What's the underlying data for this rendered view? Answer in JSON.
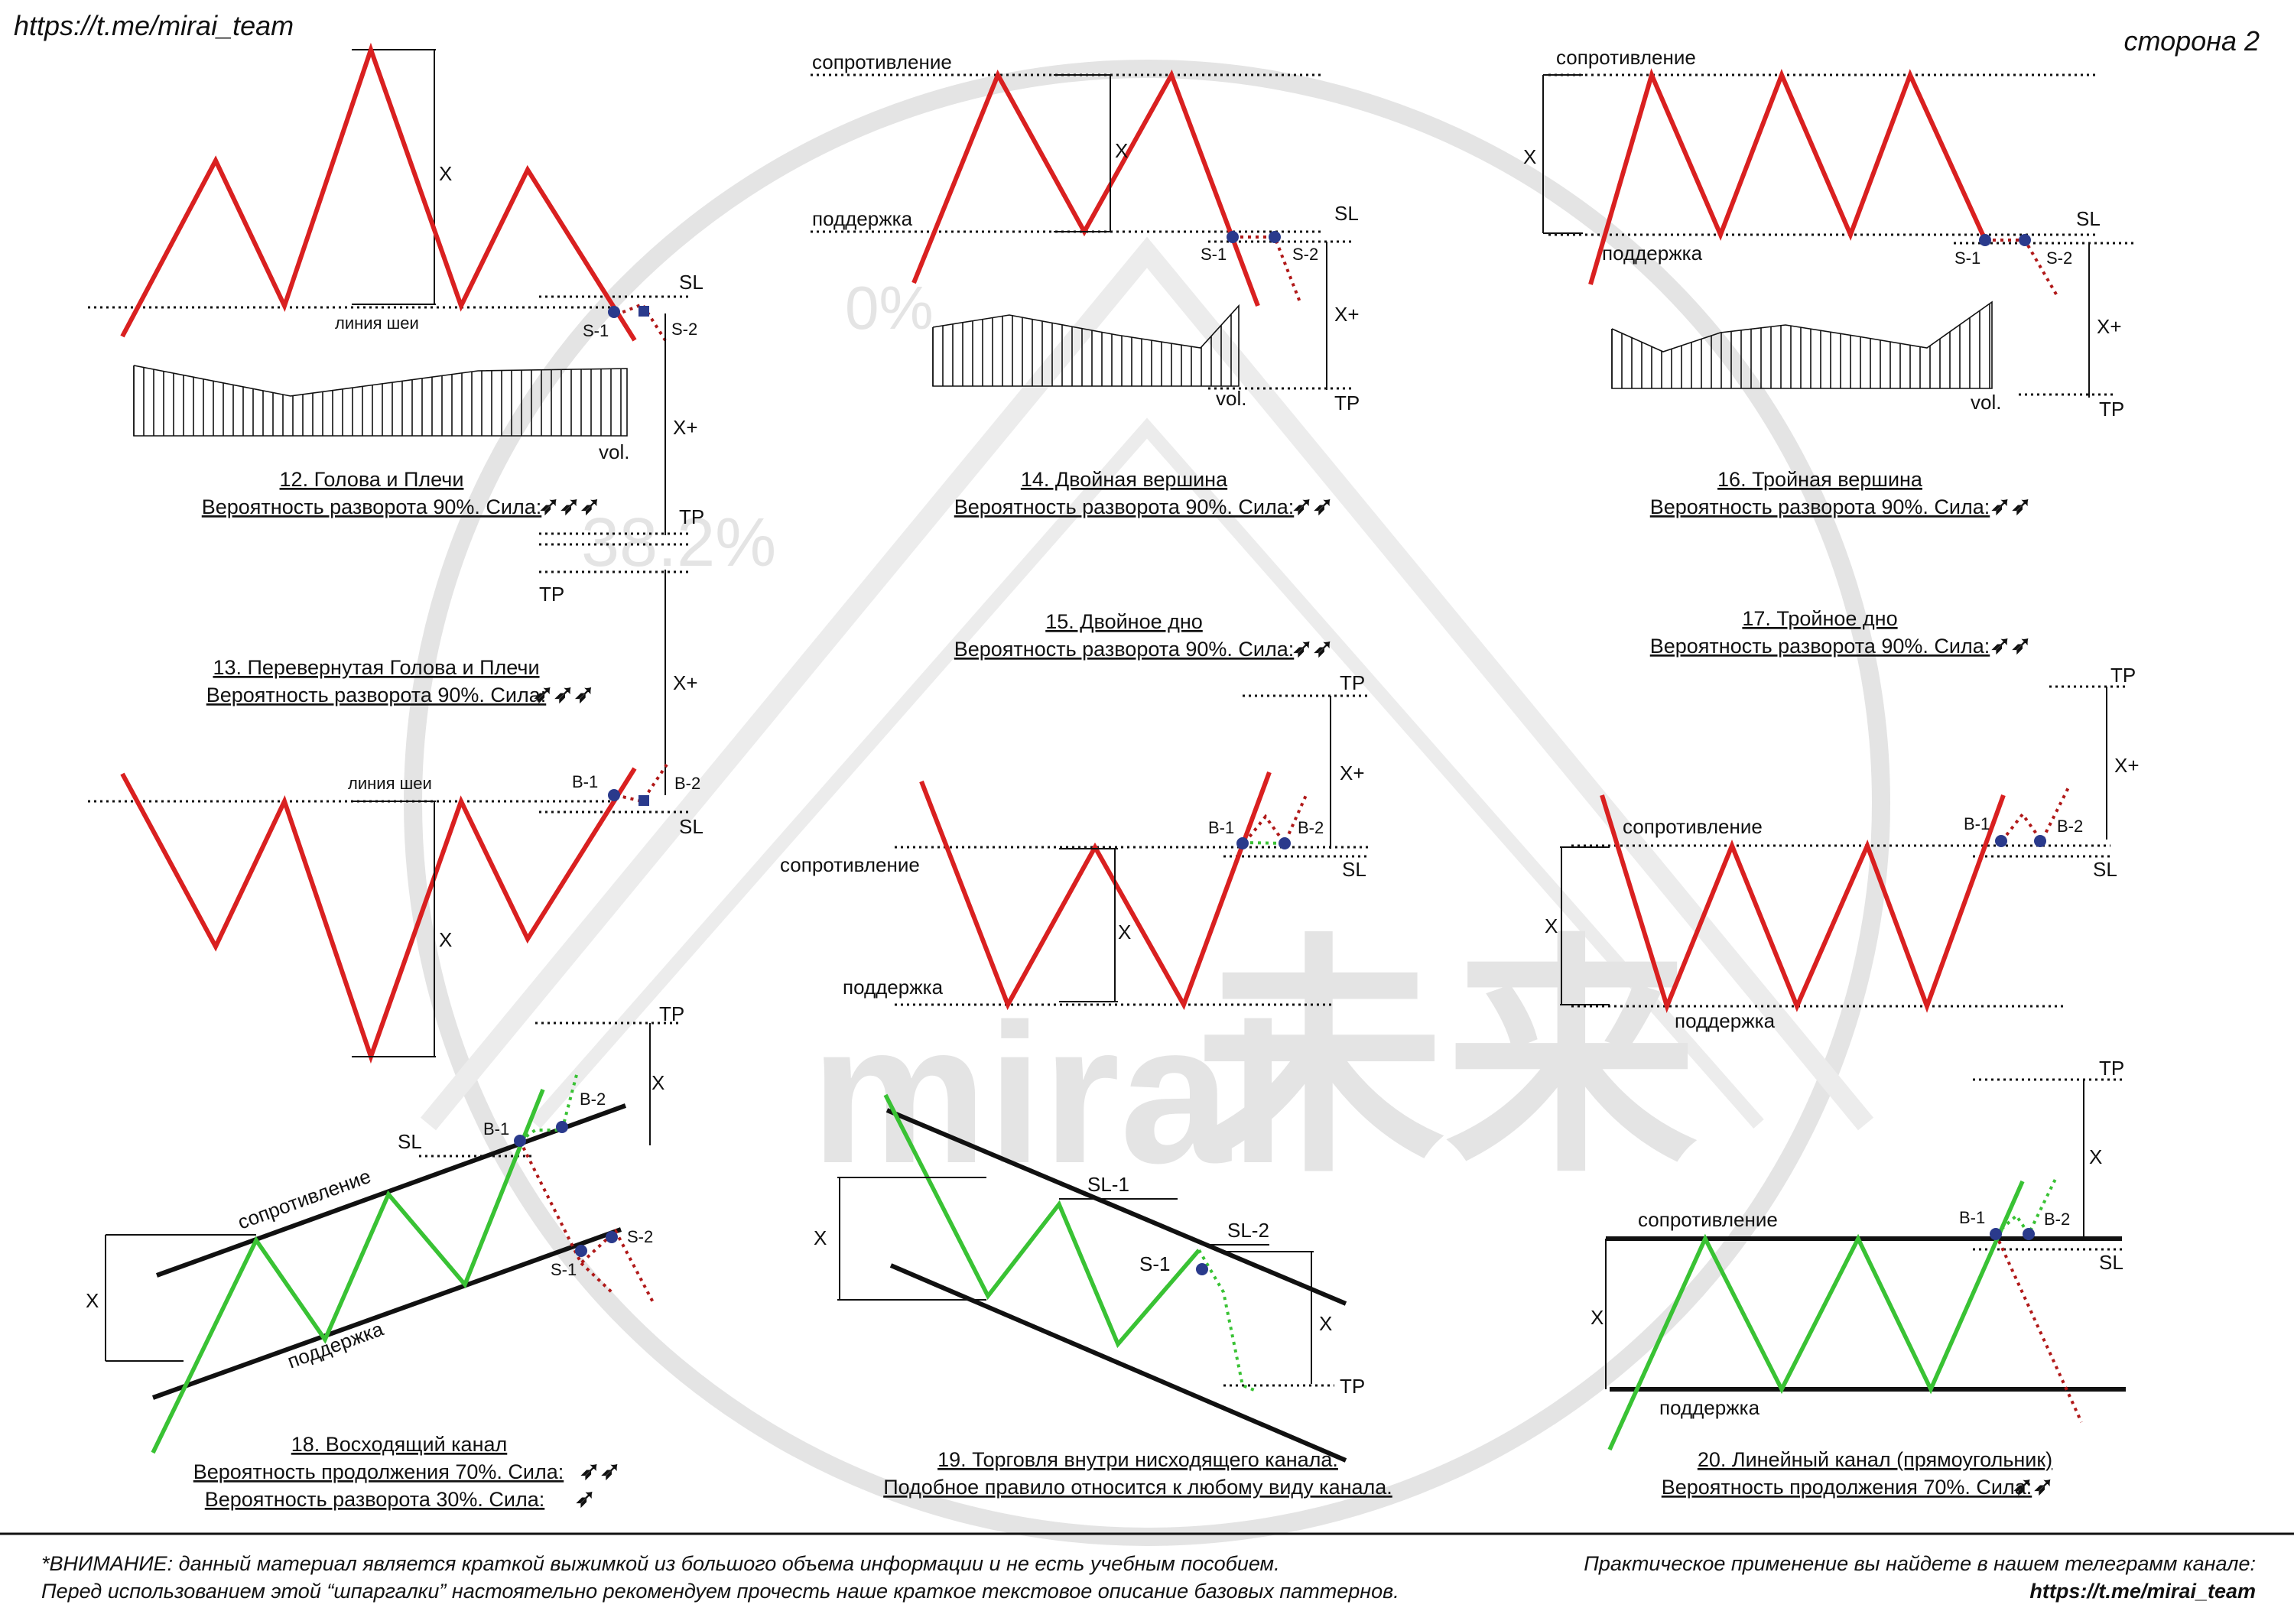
{
  "header": {
    "link": "https://t.me/mirai_team",
    "page": "сторона 2"
  },
  "watermark": {
    "brand": "mirai",
    "kanji": "未来",
    "fib_0": "0%",
    "fib_382": "38.2%"
  },
  "common": {
    "x": "X",
    "x_plus": "X+",
    "sl": "SL",
    "tp": "TP",
    "vol": "vol.",
    "s1": "S-1",
    "s2": "S-2",
    "b1": "B-1",
    "b2": "B-2",
    "neckline": "линия шеи",
    "resistance": "сопротивление",
    "support": "поддержка"
  },
  "patterns": {
    "p12": {
      "title": "12. Голова и Плечи",
      "prob": "Вероятность разворота 90%. Сила:"
    },
    "p13": {
      "title": "13. Перевернутая Голова и Плечи",
      "prob": "Вероятность разворота 90%. Сила:"
    },
    "p14": {
      "title": "14. Двойная вершина",
      "prob": "Вероятность разворота 90%. Сила:"
    },
    "p15": {
      "title": "15. Двойное дно",
      "prob": "Вероятность разворота 90%. Сила:"
    },
    "p16": {
      "title": "16. Тройная вершина",
      "prob": "Вероятность разворота 90%. Сила:"
    },
    "p17": {
      "title": "17. Тройное дно",
      "prob": "Вероятность разворота 90%. Сила:"
    },
    "p18": {
      "title": "18. Восходящий канал",
      "prob": "Вероятность продолжения 70%. Сила:",
      "prob2": "Вероятность разворота 30%. Сила:"
    },
    "p19": {
      "title": "19. Торговля внутри нисходящего канала.",
      "prob": "Подобное правило относится к любому виду канала.",
      "sl1": "SL-1",
      "sl2": "SL-2"
    },
    "p20": {
      "title": "20. Линейный канал (прямоугольник)",
      "prob": "Вероятность продолжения 70%. Сила:"
    }
  },
  "footer": {
    "note_line1": "*ВНИМАНИЕ: данный материал является краткой выжимкой из большого объема информации и не есть учебным пособием.",
    "note_line2": "Перед использованием этой “шпаргалки” настоятельно рекомендуем прочесть наше краткое текстовое описание базовых паттернов.",
    "promo_line1": "Практическое применение вы найдете в нашем телеграмм канале:",
    "promo_line2": "https://t.me/mirai_team"
  }
}
